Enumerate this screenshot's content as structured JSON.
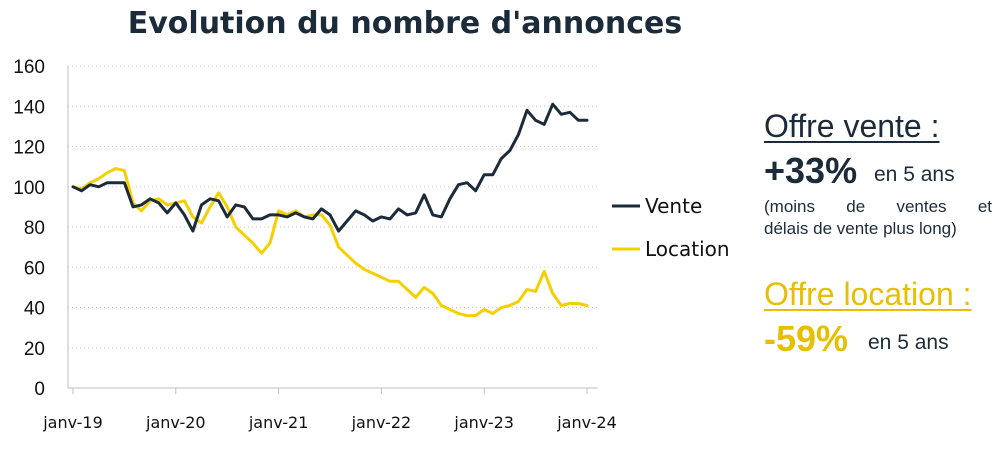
{
  "chart_data": {
    "type": "line",
    "title": "Evolution du nombre d'annonces",
    "ylim": [
      0,
      160
    ],
    "yticks": [
      "0",
      "20",
      "40",
      "60",
      "80",
      "100",
      "120",
      "140",
      "160"
    ],
    "xtick_labels": [
      "janv-19",
      "janv-20",
      "janv-21",
      "janv-22",
      "janv-23",
      "janv-24"
    ],
    "grid": "horizontal dotted",
    "legend_position": "right",
    "x": [
      "2019-01",
      "2019-02",
      "2019-03",
      "2019-04",
      "2019-05",
      "2019-06",
      "2019-07",
      "2019-08",
      "2019-09",
      "2019-10",
      "2019-11",
      "2019-12",
      "2020-01",
      "2020-02",
      "2020-03",
      "2020-04",
      "2020-05",
      "2020-06",
      "2020-07",
      "2020-08",
      "2020-09",
      "2020-10",
      "2020-11",
      "2020-12",
      "2021-01",
      "2021-02",
      "2021-03",
      "2021-04",
      "2021-05",
      "2021-06",
      "2021-07",
      "2021-08",
      "2021-09",
      "2021-10",
      "2021-11",
      "2021-12",
      "2022-01",
      "2022-02",
      "2022-03",
      "2022-04",
      "2022-05",
      "2022-06",
      "2022-07",
      "2022-08",
      "2022-09",
      "2022-10",
      "2022-11",
      "2022-12",
      "2023-01",
      "2023-02",
      "2023-03",
      "2023-04",
      "2023-05",
      "2023-06",
      "2023-07",
      "2023-08",
      "2023-09",
      "2023-10",
      "2023-11",
      "2023-12",
      "2024-01"
    ],
    "series": [
      {
        "name": "Vente",
        "color": "#1c2b3a",
        "values": [
          100,
          98,
          101,
          100,
          102,
          102,
          102,
          90,
          91,
          94,
          92,
          87,
          92,
          86,
          78,
          91,
          94,
          93,
          85,
          91,
          90,
          84,
          84,
          86,
          86,
          85,
          87,
          85,
          84,
          89,
          86,
          78,
          83,
          88,
          86,
          83,
          85,
          84,
          89,
          86,
          87,
          96,
          86,
          85,
          94,
          101,
          102,
          98,
          106,
          106,
          114,
          118,
          126,
          138,
          133,
          131,
          141,
          136,
          137,
          133,
          133
        ]
      },
      {
        "name": "Location",
        "color": "#f5d000",
        "values": [
          100,
          99,
          102,
          104,
          107,
          109,
          108,
          92,
          88,
          93,
          94,
          91,
          92,
          93,
          85,
          82,
          90,
          97,
          90,
          80,
          76,
          72,
          67,
          72,
          88,
          86,
          88,
          85,
          86,
          86,
          81,
          70,
          66,
          62,
          59,
          57,
          55,
          53,
          53,
          49,
          45,
          50,
          47,
          41,
          39,
          37,
          36,
          36,
          39,
          37,
          40,
          41,
          43,
          49,
          48,
          58,
          47,
          41,
          42,
          42,
          41
        ]
      }
    ]
  },
  "summary": {
    "vente": {
      "heading": "Offre vente :",
      "pct": "+33%",
      "suffix": "en 5 ans",
      "note_line1": "(moins de ventes et",
      "note_line2": "délais de vente plus long)",
      "color": "#1c2b3a"
    },
    "location": {
      "heading": "Offre location :",
      "pct": "-59%",
      "suffix": "en 5 ans",
      "color": "#e6bf00"
    }
  }
}
